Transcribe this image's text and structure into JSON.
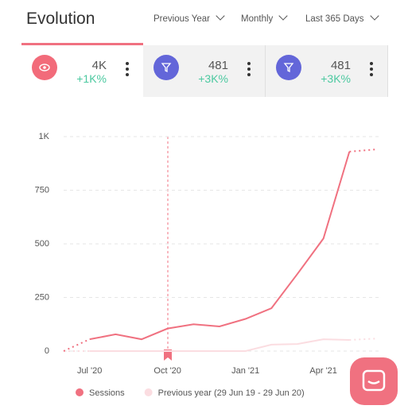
{
  "header": {
    "title": "Evolution",
    "filters": [
      "Previous Year",
      "Monthly",
      "Last 365 Days"
    ]
  },
  "cards": [
    {
      "value": "4K",
      "change": "+1K%"
    },
    {
      "value": "481",
      "change": "+3K%"
    },
    {
      "value": "481",
      "change": "+3K%"
    }
  ],
  "chart_data": {
    "type": "line",
    "categories": [
      null,
      "Jul '20",
      null,
      null,
      "Oct '20",
      null,
      null,
      "Jan '21",
      null,
      null,
      "Apr '21",
      null,
      null
    ],
    "series": [
      {
        "name": "Sessions",
        "color": "#f07180",
        "values": [
          0,
          55,
          78,
          55,
          105,
          125,
          115,
          150,
          200,
          360,
          525,
          930,
          940
        ]
      },
      {
        "name": "Previous year (29 Jun 19 - 29 Jun 20)",
        "color": "#fbdde1",
        "values": [
          0,
          0,
          0,
          0,
          0,
          0,
          0,
          0,
          30,
          33,
          55,
          52,
          58
        ]
      }
    ],
    "ylim": [
      0,
      1000
    ],
    "yticks": [
      0,
      250,
      500,
      750,
      {
        "value": 1000,
        "label": "1K"
      }
    ],
    "grid": true
  }
}
